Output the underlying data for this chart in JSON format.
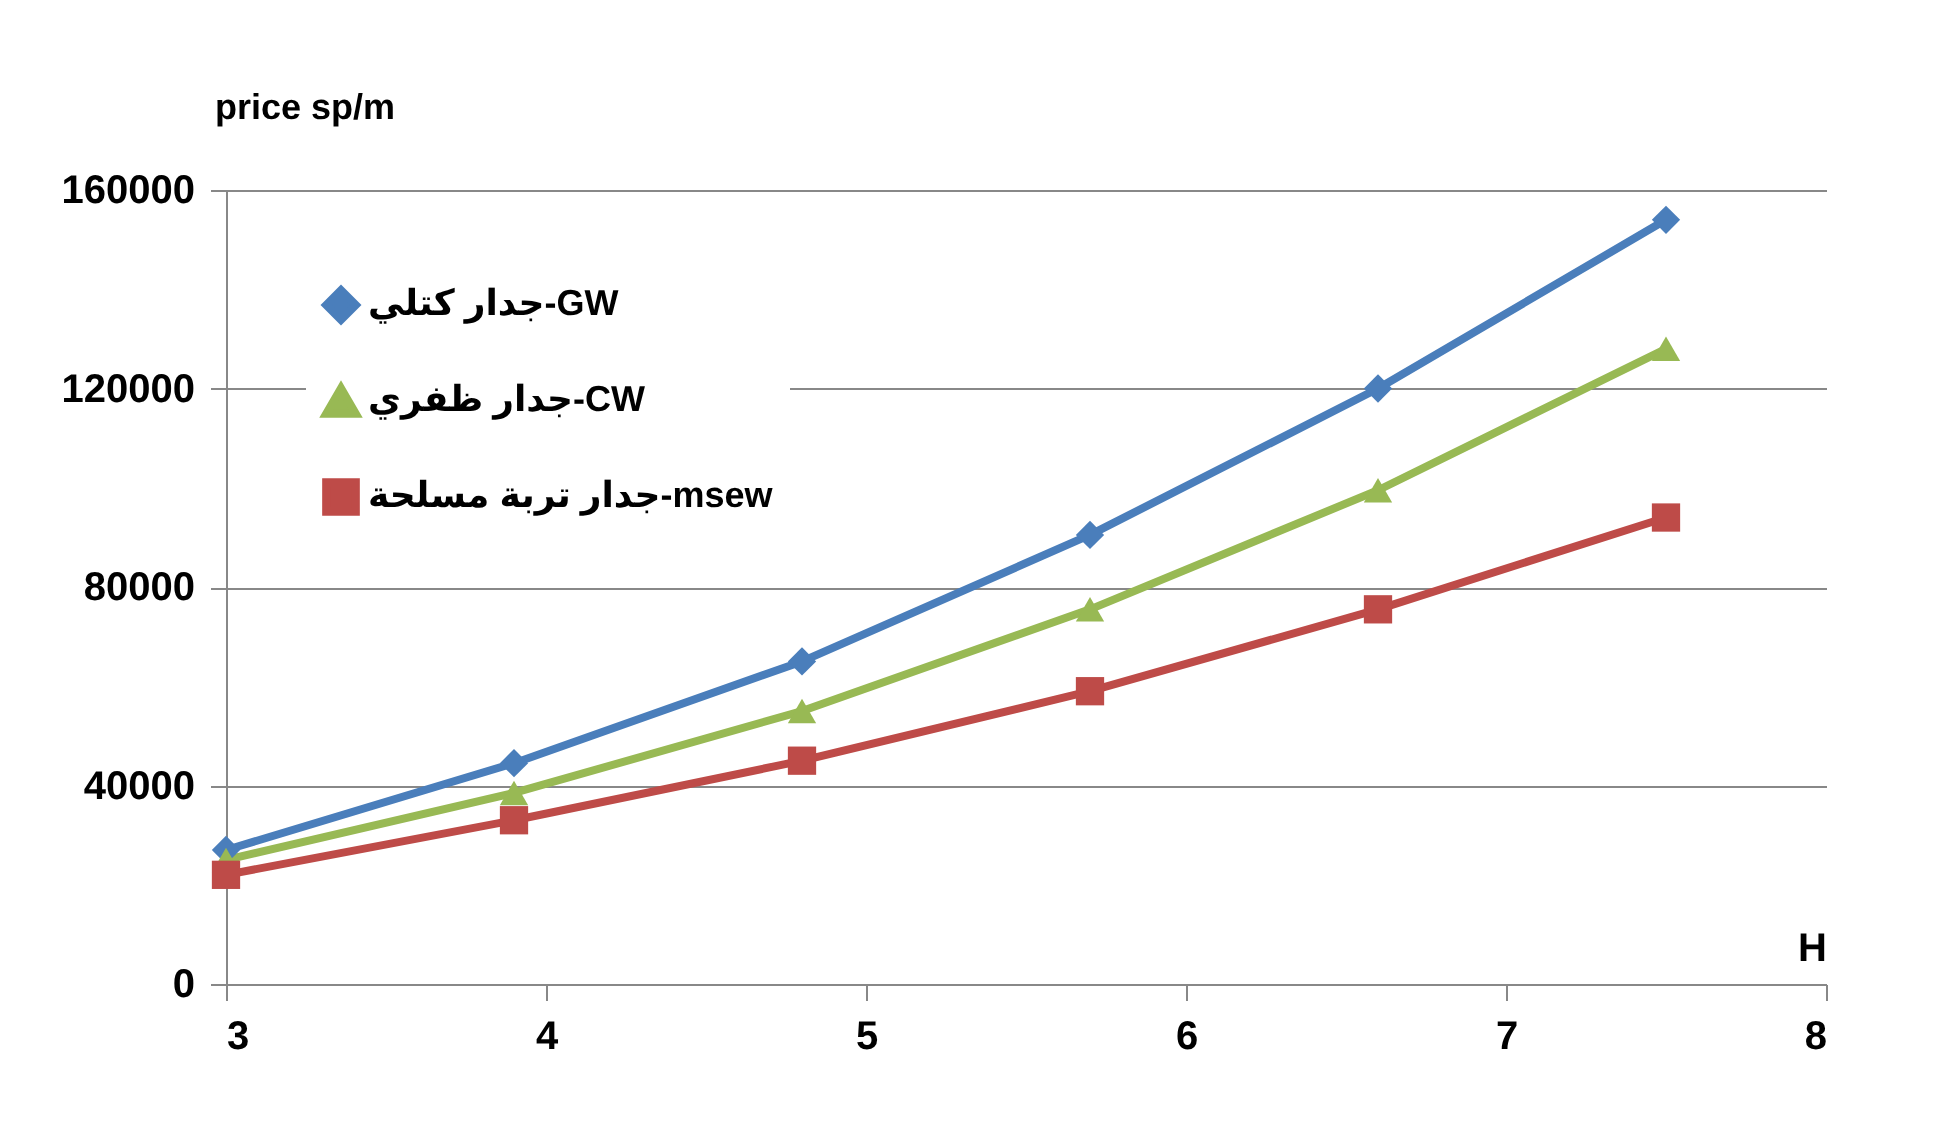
{
  "chart_data": {
    "type": "line",
    "ylabel": "price sp/m",
    "xlabel": "H",
    "x": [
      3,
      3.9,
      4.8,
      5.7,
      6.6,
      7.5
    ],
    "series": [
      {
        "name": "جدار كتلي-GW",
        "color": "#4a7ebb",
        "marker": "diamond",
        "values": [
          27000,
          44500,
          65000,
          90500,
          120000,
          154000
        ]
      },
      {
        "name": "جدار ظفري-CW",
        "color": "#98b954",
        "marker": "triangle",
        "values": [
          25000,
          38500,
          55000,
          75500,
          99500,
          128000
        ]
      },
      {
        "name": "جدار تربة مسلحة-msew",
        "color": "#be4b48",
        "marker": "square",
        "values": [
          22000,
          33000,
          45000,
          59000,
          75500,
          94000
        ]
      }
    ],
    "xlim": [
      3,
      8
    ],
    "xticks": [
      3,
      4,
      5,
      6,
      7,
      8
    ],
    "ylim": [
      0,
      160000
    ],
    "yticks": [
      0,
      40000,
      80000,
      120000,
      160000
    ],
    "grid": "y",
    "legend": "top left",
    "line_style": "solid"
  }
}
